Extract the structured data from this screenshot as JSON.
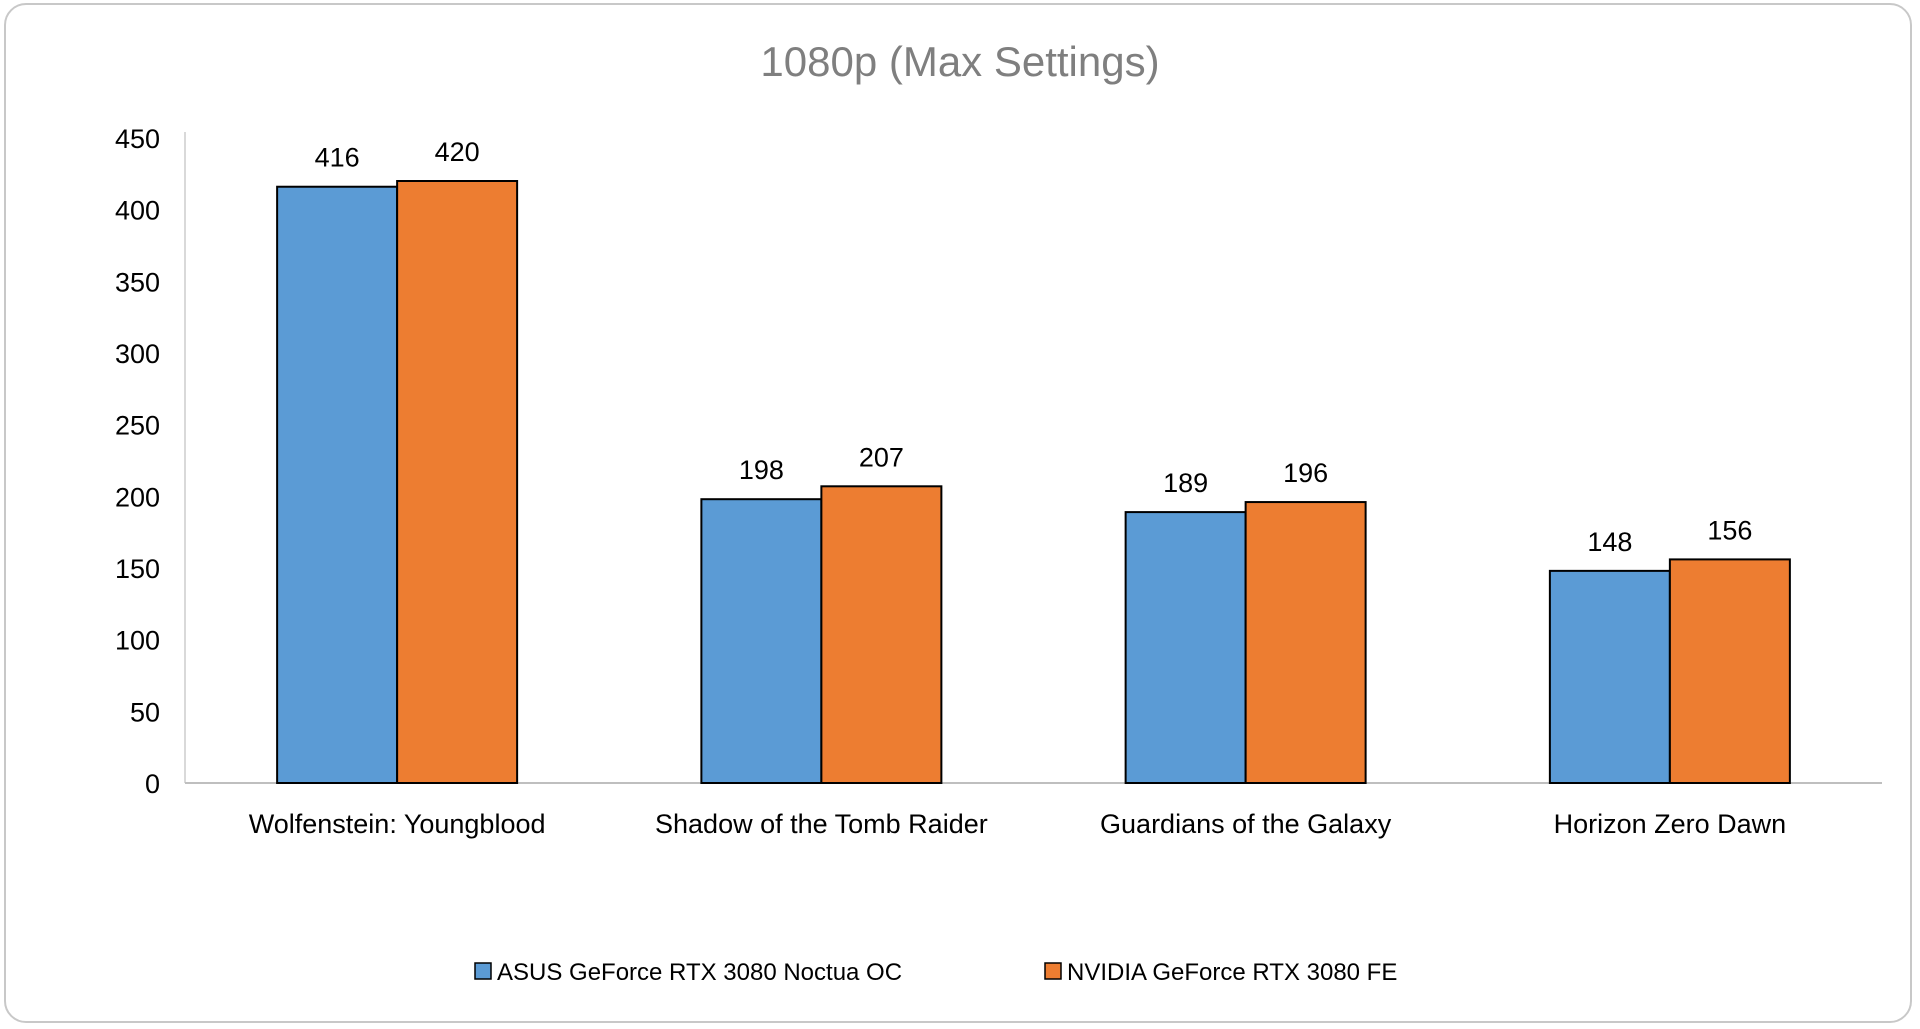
{
  "chart_data": {
    "type": "bar",
    "title": "1080p (Max Settings)",
    "categories": [
      "Wolfenstein: Youngblood",
      "Shadow of the Tomb Raider",
      "Guardians of the Galaxy",
      "Horizon Zero Dawn"
    ],
    "series": [
      {
        "name": "ASUS GeForce RTX 3080 Noctua OC",
        "color": "#5b9bd5",
        "values": [
          416,
          198,
          189,
          148
        ]
      },
      {
        "name": "NVIDIA GeForce RTX 3080 FE",
        "color": "#ed7d31",
        "values": [
          420,
          207,
          196,
          156
        ]
      }
    ],
    "ylim": [
      0,
      450
    ],
    "yticks": [
      0,
      50,
      100,
      150,
      200,
      250,
      300,
      350,
      400,
      450
    ],
    "grid": false,
    "legend": "bottom",
    "data_labels": true
  }
}
